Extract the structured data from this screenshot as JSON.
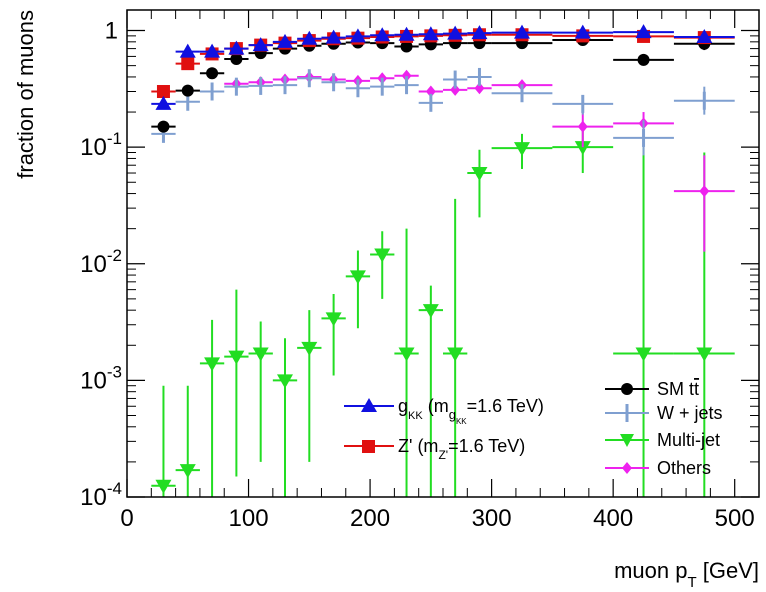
{
  "chart_data": {
    "type": "scatter",
    "title": "",
    "xlabel_main": "muon p",
    "xlabel_sub": "T",
    "xlabel_unit": " [GeV]",
    "ylabel": "fraction of muons",
    "xlim": [
      0,
      520
    ],
    "ylim": [
      0.0001,
      1.5
    ],
    "yscale": "log",
    "grid": false,
    "x_ticks": [
      {
        "value": 0,
        "label": "0"
      },
      {
        "value": 100,
        "label": "100"
      },
      {
        "value": 200,
        "label": "200"
      },
      {
        "value": 300,
        "label": "300"
      },
      {
        "value": 400,
        "label": "400"
      },
      {
        "value": 500,
        "label": "500"
      }
    ],
    "y_ticks": [
      {
        "value": 0.0001,
        "base": "10",
        "exp": "-4"
      },
      {
        "value": 0.001,
        "base": "10",
        "exp": "-3"
      },
      {
        "value": 0.01,
        "base": "10",
        "exp": "-2"
      },
      {
        "value": 0.1,
        "base": "10",
        "exp": "-1"
      },
      {
        "value": 1,
        "base": "1",
        "exp": ""
      }
    ],
    "series": [
      {
        "key": "gkk",
        "label_main": "g",
        "label_sub": "KK",
        "label_paren": " (m",
        "label_sub2": "g",
        "label_sub3": "KK",
        "label_tail": "=1.6 TeV)",
        "color": "#1010e0",
        "marker": "triangle-up",
        "points": [
          {
            "x": 30,
            "xlo": 20,
            "xhi": 40,
            "y": 0.235,
            "ylo": 0.215,
            "yhi": 0.255
          },
          {
            "x": 50,
            "xlo": 40,
            "xhi": 60,
            "y": 0.66,
            "ylo": 0.64,
            "yhi": 0.68
          },
          {
            "x": 70,
            "xlo": 60,
            "xhi": 80,
            "y": 0.66,
            "ylo": 0.64,
            "yhi": 0.68
          },
          {
            "x": 90,
            "xlo": 80,
            "xhi": 100,
            "y": 0.7,
            "ylo": 0.68,
            "yhi": 0.72
          },
          {
            "x": 110,
            "xlo": 100,
            "xhi": 120,
            "y": 0.75,
            "ylo": 0.73,
            "yhi": 0.77
          },
          {
            "x": 130,
            "xlo": 120,
            "xhi": 140,
            "y": 0.8,
            "ylo": 0.78,
            "yhi": 0.82
          },
          {
            "x": 150,
            "xlo": 140,
            "xhi": 160,
            "y": 0.85,
            "ylo": 0.83,
            "yhi": 0.87
          },
          {
            "x": 170,
            "xlo": 160,
            "xhi": 180,
            "y": 0.87,
            "ylo": 0.85,
            "yhi": 0.89
          },
          {
            "x": 190,
            "xlo": 180,
            "xhi": 200,
            "y": 0.89,
            "ylo": 0.87,
            "yhi": 0.91
          },
          {
            "x": 210,
            "xlo": 200,
            "xhi": 220,
            "y": 0.91,
            "ylo": 0.89,
            "yhi": 0.93
          },
          {
            "x": 230,
            "xlo": 220,
            "xhi": 240,
            "y": 0.92,
            "ylo": 0.9,
            "yhi": 0.94
          },
          {
            "x": 250,
            "xlo": 240,
            "xhi": 260,
            "y": 0.93,
            "ylo": 0.91,
            "yhi": 0.95
          },
          {
            "x": 270,
            "xlo": 260,
            "xhi": 280,
            "y": 0.94,
            "ylo": 0.92,
            "yhi": 0.96
          },
          {
            "x": 290,
            "xlo": 280,
            "xhi": 300,
            "y": 0.95,
            "ylo": 0.93,
            "yhi": 0.97
          },
          {
            "x": 325,
            "xlo": 300,
            "xhi": 350,
            "y": 0.96,
            "ylo": 0.94,
            "yhi": 0.98
          },
          {
            "x": 375,
            "xlo": 350,
            "xhi": 400,
            "y": 0.96,
            "ylo": 0.94,
            "yhi": 0.98
          },
          {
            "x": 425,
            "xlo": 400,
            "xhi": 450,
            "y": 0.97,
            "ylo": 0.95,
            "yhi": 0.99
          },
          {
            "x": 475,
            "xlo": 450,
            "xhi": 500,
            "y": 0.88,
            "ylo": 0.86,
            "yhi": 0.9
          }
        ]
      },
      {
        "key": "zprime",
        "label_main": "Z'",
        "label_paren": " (m",
        "label_sub2": "Z'",
        "label_tail": "=1.6 TeV)",
        "color": "#e01010",
        "marker": "square",
        "points": [
          {
            "x": 30,
            "xlo": 20,
            "xhi": 40,
            "y": 0.3,
            "ylo": 0.285,
            "yhi": 0.315
          },
          {
            "x": 50,
            "xlo": 40,
            "xhi": 60,
            "y": 0.52,
            "ylo": 0.5,
            "yhi": 0.54
          },
          {
            "x": 70,
            "xlo": 60,
            "xhi": 80,
            "y": 0.63,
            "ylo": 0.61,
            "yhi": 0.65
          },
          {
            "x": 90,
            "xlo": 80,
            "xhi": 100,
            "y": 0.7,
            "ylo": 0.68,
            "yhi": 0.72
          },
          {
            "x": 110,
            "xlo": 100,
            "xhi": 120,
            "y": 0.75,
            "ylo": 0.73,
            "yhi": 0.77
          },
          {
            "x": 130,
            "xlo": 120,
            "xhi": 140,
            "y": 0.78,
            "ylo": 0.76,
            "yhi": 0.8
          },
          {
            "x": 150,
            "xlo": 140,
            "xhi": 160,
            "y": 0.82,
            "ylo": 0.8,
            "yhi": 0.84
          },
          {
            "x": 170,
            "xlo": 160,
            "xhi": 180,
            "y": 0.85,
            "ylo": 0.83,
            "yhi": 0.87
          },
          {
            "x": 190,
            "xlo": 180,
            "xhi": 200,
            "y": 0.86,
            "ylo": 0.84,
            "yhi": 0.88
          },
          {
            "x": 210,
            "xlo": 200,
            "xhi": 220,
            "y": 0.88,
            "ylo": 0.86,
            "yhi": 0.9
          },
          {
            "x": 230,
            "xlo": 220,
            "xhi": 240,
            "y": 0.89,
            "ylo": 0.87,
            "yhi": 0.91
          },
          {
            "x": 250,
            "xlo": 240,
            "xhi": 260,
            "y": 0.9,
            "ylo": 0.88,
            "yhi": 0.92
          },
          {
            "x": 270,
            "xlo": 260,
            "xhi": 280,
            "y": 0.91,
            "ylo": 0.89,
            "yhi": 0.93
          },
          {
            "x": 290,
            "xlo": 280,
            "xhi": 300,
            "y": 0.92,
            "ylo": 0.9,
            "yhi": 0.94
          },
          {
            "x": 325,
            "xlo": 300,
            "xhi": 350,
            "y": 0.92,
            "ylo": 0.9,
            "yhi": 0.94
          },
          {
            "x": 375,
            "xlo": 350,
            "xhi": 400,
            "y": 0.9,
            "ylo": 0.88,
            "yhi": 0.92
          },
          {
            "x": 425,
            "xlo": 400,
            "xhi": 450,
            "y": 0.89,
            "ylo": 0.87,
            "yhi": 0.91
          },
          {
            "x": 475,
            "xlo": 450,
            "xhi": 500,
            "y": 0.87,
            "ylo": 0.85,
            "yhi": 0.89
          }
        ]
      },
      {
        "key": "smtt",
        "label_main": "SM t",
        "label_bar": "t",
        "color": "#000000",
        "marker": "circle",
        "points": [
          {
            "x": 30,
            "xlo": 20,
            "xhi": 40,
            "y": 0.15,
            "ylo": 0.14,
            "yhi": 0.16
          },
          {
            "x": 50,
            "xlo": 40,
            "xhi": 60,
            "y": 0.305,
            "ylo": 0.29,
            "yhi": 0.32
          },
          {
            "x": 70,
            "xlo": 60,
            "xhi": 80,
            "y": 0.43,
            "ylo": 0.41,
            "yhi": 0.45
          },
          {
            "x": 90,
            "xlo": 80,
            "xhi": 100,
            "y": 0.57,
            "ylo": 0.55,
            "yhi": 0.59
          },
          {
            "x": 110,
            "xlo": 100,
            "xhi": 120,
            "y": 0.64,
            "ylo": 0.62,
            "yhi": 0.66
          },
          {
            "x": 130,
            "xlo": 120,
            "xhi": 140,
            "y": 0.7,
            "ylo": 0.68,
            "yhi": 0.72
          },
          {
            "x": 150,
            "xlo": 140,
            "xhi": 160,
            "y": 0.74,
            "ylo": 0.72,
            "yhi": 0.76
          },
          {
            "x": 170,
            "xlo": 160,
            "xhi": 180,
            "y": 0.77,
            "ylo": 0.75,
            "yhi": 0.79
          },
          {
            "x": 190,
            "xlo": 180,
            "xhi": 200,
            "y": 0.79,
            "ylo": 0.77,
            "yhi": 0.81
          },
          {
            "x": 210,
            "xlo": 200,
            "xhi": 220,
            "y": 0.78,
            "ylo": 0.76,
            "yhi": 0.8
          },
          {
            "x": 230,
            "xlo": 220,
            "xhi": 240,
            "y": 0.73,
            "ylo": 0.71,
            "yhi": 0.75
          },
          {
            "x": 250,
            "xlo": 240,
            "xhi": 260,
            "y": 0.76,
            "ylo": 0.74,
            "yhi": 0.78
          },
          {
            "x": 270,
            "xlo": 260,
            "xhi": 280,
            "y": 0.78,
            "ylo": 0.76,
            "yhi": 0.8
          },
          {
            "x": 290,
            "xlo": 280,
            "xhi": 300,
            "y": 0.78,
            "ylo": 0.76,
            "yhi": 0.8
          },
          {
            "x": 325,
            "xlo": 300,
            "xhi": 350,
            "y": 0.78,
            "ylo": 0.76,
            "yhi": 0.8
          },
          {
            "x": 375,
            "xlo": 350,
            "xhi": 400,
            "y": 0.83,
            "ylo": 0.8,
            "yhi": 0.86
          },
          {
            "x": 425,
            "xlo": 400,
            "xhi": 450,
            "y": 0.56,
            "ylo": 0.5,
            "yhi": 0.62
          },
          {
            "x": 475,
            "xlo": 450,
            "xhi": 500,
            "y": 0.77,
            "ylo": 0.68,
            "yhi": 0.86
          }
        ]
      },
      {
        "key": "wjets",
        "label_main": "W + jets",
        "color": "#7f9fd0",
        "marker": "cross",
        "points": [
          {
            "x": 30,
            "xlo": 20,
            "xhi": 40,
            "y": 0.13,
            "ylo": 0.12,
            "yhi": 0.14
          },
          {
            "x": 50,
            "xlo": 40,
            "xhi": 60,
            "y": 0.245,
            "ylo": 0.23,
            "yhi": 0.26
          },
          {
            "x": 70,
            "xlo": 60,
            "xhi": 80,
            "y": 0.3,
            "ylo": 0.28,
            "yhi": 0.32
          },
          {
            "x": 90,
            "xlo": 80,
            "xhi": 100,
            "y": 0.33,
            "ylo": 0.31,
            "yhi": 0.35
          },
          {
            "x": 110,
            "xlo": 100,
            "xhi": 120,
            "y": 0.335,
            "ylo": 0.31,
            "yhi": 0.36
          },
          {
            "x": 130,
            "xlo": 120,
            "xhi": 140,
            "y": 0.34,
            "ylo": 0.315,
            "yhi": 0.365
          },
          {
            "x": 150,
            "xlo": 140,
            "xhi": 160,
            "y": 0.39,
            "ylo": 0.36,
            "yhi": 0.42
          },
          {
            "x": 170,
            "xlo": 160,
            "xhi": 180,
            "y": 0.36,
            "ylo": 0.33,
            "yhi": 0.39
          },
          {
            "x": 190,
            "xlo": 180,
            "xhi": 200,
            "y": 0.32,
            "ylo": 0.29,
            "yhi": 0.35
          },
          {
            "x": 210,
            "xlo": 200,
            "xhi": 220,
            "y": 0.33,
            "ylo": 0.3,
            "yhi": 0.36
          },
          {
            "x": 230,
            "xlo": 220,
            "xhi": 240,
            "y": 0.34,
            "ylo": 0.3,
            "yhi": 0.38
          },
          {
            "x": 250,
            "xlo": 240,
            "xhi": 260,
            "y": 0.24,
            "ylo": 0.21,
            "yhi": 0.27
          },
          {
            "x": 270,
            "xlo": 260,
            "xhi": 280,
            "y": 0.38,
            "ylo": 0.33,
            "yhi": 0.43
          },
          {
            "x": 290,
            "xlo": 280,
            "xhi": 300,
            "y": 0.4,
            "ylo": 0.34,
            "yhi": 0.46
          },
          {
            "x": 325,
            "xlo": 300,
            "xhi": 350,
            "y": 0.29,
            "ylo": 0.25,
            "yhi": 0.33
          },
          {
            "x": 375,
            "xlo": 350,
            "xhi": 400,
            "y": 0.235,
            "ylo": 0.19,
            "yhi": 0.28
          },
          {
            "x": 425,
            "xlo": 400,
            "xhi": 450,
            "y": 0.12,
            "ylo": 0.085,
            "yhi": 0.17
          },
          {
            "x": 475,
            "xlo": 450,
            "xhi": 500,
            "y": 0.25,
            "ylo": 0.19,
            "yhi": 0.33
          }
        ]
      },
      {
        "key": "multijet",
        "label_main": "Multi-jet",
        "color": "#22dd22",
        "marker": "triangle-down",
        "points": [
          {
            "x": 30,
            "xlo": 20,
            "xhi": 40,
            "y": 0.000125,
            "ylo": 0.0001,
            "yhi": 0.0009
          },
          {
            "x": 50,
            "xlo": 40,
            "xhi": 60,
            "y": 0.00017,
            "ylo": 0.0001,
            "yhi": 0.0009
          },
          {
            "x": 70,
            "xlo": 60,
            "xhi": 80,
            "y": 0.0014,
            "ylo": 0.0001,
            "yhi": 0.0033
          },
          {
            "x": 90,
            "xlo": 80,
            "xhi": 100,
            "y": 0.0016,
            "ylo": 0.00015,
            "yhi": 0.006
          },
          {
            "x": 110,
            "xlo": 100,
            "xhi": 120,
            "y": 0.0017,
            "ylo": 0.0002,
            "yhi": 0.0032
          },
          {
            "x": 130,
            "xlo": 120,
            "xhi": 140,
            "y": 0.001,
            "ylo": 0.0001,
            "yhi": 0.0023
          },
          {
            "x": 150,
            "xlo": 140,
            "xhi": 160,
            "y": 0.0019,
            "ylo": 0.0002,
            "yhi": 0.004
          },
          {
            "x": 170,
            "xlo": 160,
            "xhi": 180,
            "y": 0.0034,
            "ylo": 0.0011,
            "yhi": 0.0055
          },
          {
            "x": 190,
            "xlo": 180,
            "xhi": 200,
            "y": 0.0078,
            "ylo": 0.0028,
            "yhi": 0.013
          },
          {
            "x": 210,
            "xlo": 200,
            "xhi": 220,
            "y": 0.012,
            "ylo": 0.005,
            "yhi": 0.019
          },
          {
            "x": 230,
            "xlo": 220,
            "xhi": 240,
            "y": 0.0017,
            "ylo": 0.0001,
            "yhi": 0.02
          },
          {
            "x": 250,
            "xlo": 240,
            "xhi": 260,
            "y": 0.004,
            "ylo": 0.0001,
            "yhi": 0.0065
          },
          {
            "x": 270,
            "xlo": 260,
            "xhi": 280,
            "y": 0.0017,
            "ylo": 0.0001,
            "yhi": 0.036
          },
          {
            "x": 290,
            "xlo": 280,
            "xhi": 300,
            "y": 0.06,
            "ylo": 0.025,
            "yhi": 0.095
          },
          {
            "x": 325,
            "xlo": 300,
            "xhi": 350,
            "y": 0.098,
            "ylo": 0.065,
            "yhi": 0.13
          },
          {
            "x": 375,
            "xlo": 350,
            "xhi": 400,
            "y": 0.1,
            "ylo": 0.06,
            "yhi": 0.14
          },
          {
            "x": 425,
            "xlo": 400,
            "xhi": 450,
            "y": 0.0017,
            "ylo": 0.0001,
            "yhi": 0.1
          },
          {
            "x": 475,
            "xlo": 450,
            "xhi": 500,
            "y": 0.0017,
            "ylo": 0.0001,
            "yhi": 0.09
          }
        ]
      },
      {
        "key": "others",
        "label_main": "Others",
        "color": "#ee22ee",
        "marker": "diamond",
        "points": [
          {
            "x": 90,
            "xlo": 80,
            "xhi": 100,
            "y": 0.35,
            "ylo": 0.33,
            "yhi": 0.37
          },
          {
            "x": 110,
            "xlo": 100,
            "xhi": 120,
            "y": 0.36,
            "ylo": 0.34,
            "yhi": 0.38
          },
          {
            "x": 130,
            "xlo": 120,
            "xhi": 140,
            "y": 0.38,
            "ylo": 0.36,
            "yhi": 0.4
          },
          {
            "x": 150,
            "xlo": 140,
            "xhi": 160,
            "y": 0.4,
            "ylo": 0.38,
            "yhi": 0.42
          },
          {
            "x": 170,
            "xlo": 160,
            "xhi": 180,
            "y": 0.38,
            "ylo": 0.36,
            "yhi": 0.4
          },
          {
            "x": 190,
            "xlo": 180,
            "xhi": 200,
            "y": 0.37,
            "ylo": 0.35,
            "yhi": 0.39
          },
          {
            "x": 210,
            "xlo": 200,
            "xhi": 220,
            "y": 0.39,
            "ylo": 0.37,
            "yhi": 0.41
          },
          {
            "x": 230,
            "xlo": 220,
            "xhi": 240,
            "y": 0.41,
            "ylo": 0.39,
            "yhi": 0.43
          },
          {
            "x": 250,
            "xlo": 240,
            "xhi": 260,
            "y": 0.3,
            "ylo": 0.28,
            "yhi": 0.32
          },
          {
            "x": 270,
            "xlo": 260,
            "xhi": 280,
            "y": 0.31,
            "ylo": 0.29,
            "yhi": 0.33
          },
          {
            "x": 290,
            "xlo": 280,
            "xhi": 300,
            "y": 0.32,
            "ylo": 0.3,
            "yhi": 0.34
          },
          {
            "x": 325,
            "xlo": 300,
            "xhi": 350,
            "y": 0.34,
            "ylo": 0.32,
            "yhi": 0.36
          },
          {
            "x": 375,
            "xlo": 350,
            "xhi": 400,
            "y": 0.15,
            "ylo": 0.1,
            "yhi": 0.2
          },
          {
            "x": 425,
            "xlo": 400,
            "xhi": 450,
            "y": 0.16,
            "ylo": 0.12,
            "yhi": 0.2
          },
          {
            "x": 475,
            "xlo": 450,
            "xhi": 500,
            "y": 0.042,
            "ylo": 0.0127,
            "yhi": 0.085
          }
        ]
      }
    ]
  }
}
